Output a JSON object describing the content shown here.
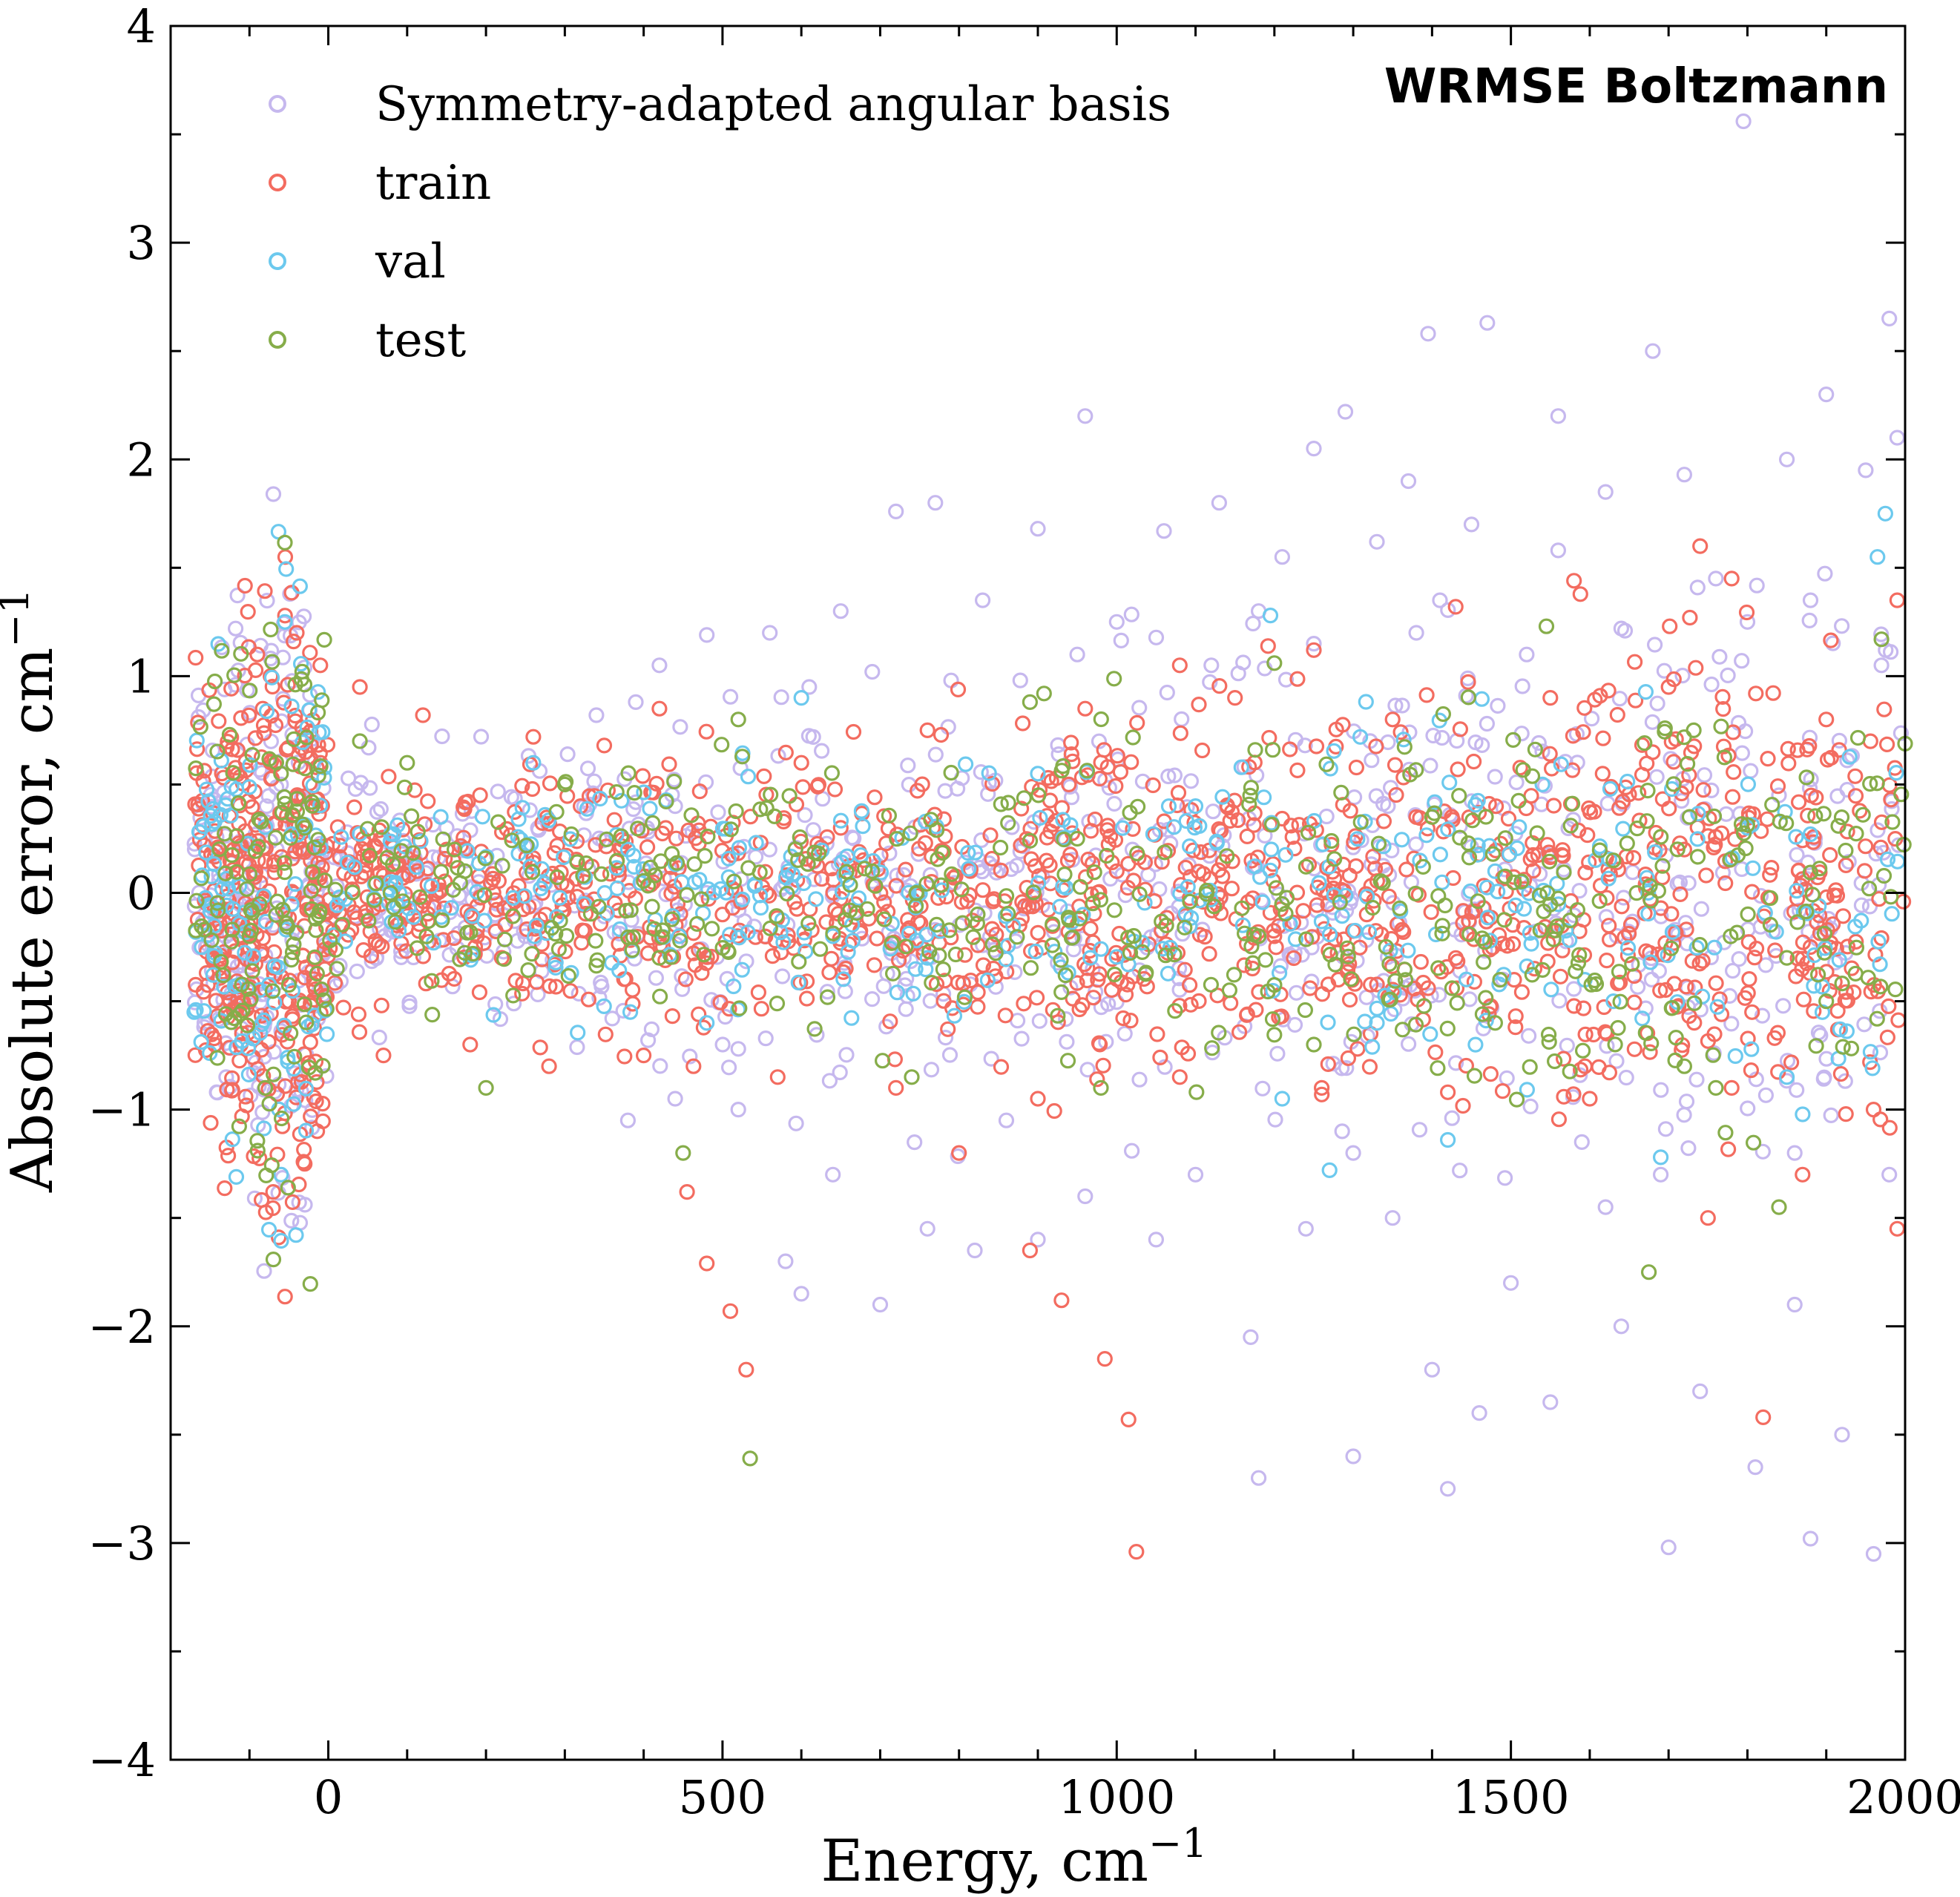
{
  "chart_data": {
    "type": "scatter",
    "title": "WRMSE Boltzmann",
    "xlabel": "Energy, cm",
    "xlabel_sup": "−1",
    "ylabel": "Absolute error, cm",
    "ylabel_sup": "−1",
    "xlim": [
      -200,
      2000
    ],
    "ylim": [
      -4,
      4
    ],
    "xticks": [
      0,
      500,
      1000,
      1500,
      2000
    ],
    "xtick_labels": [
      "0",
      "500",
      "1000",
      "1500",
      "2000"
    ],
    "yticks": [
      -4,
      -3,
      -2,
      -1,
      0,
      1,
      2,
      3,
      4
    ],
    "ytick_labels": [
      "−4",
      "−3",
      "−2",
      "−1",
      "0",
      "1",
      "2",
      "3",
      "4"
    ],
    "grid": false,
    "legend": "top-left",
    "marker": "open-circle",
    "series": [
      {
        "name": "Symmetry-adapted angular basis",
        "color": "#c6b8ee",
        "points": [
          [
            1795,
            3.56
          ],
          [
            1470,
            2.63
          ],
          [
            1395,
            2.58
          ],
          [
            1980,
            2.65
          ],
          [
            1680,
            2.5
          ],
          [
            1900,
            2.3
          ],
          [
            1560,
            2.2
          ],
          [
            1290,
            2.22
          ],
          [
            1250,
            2.05
          ],
          [
            960,
            2.2
          ],
          [
            1850,
            2.0
          ],
          [
            1370,
            1.9
          ],
          [
            1720,
            1.93
          ],
          [
            1130,
            1.8
          ],
          [
            1620,
            1.85
          ],
          [
            1450,
            1.7
          ],
          [
            720,
            1.76
          ],
          [
            770,
            1.8
          ],
          [
            900,
            1.68
          ],
          [
            1060,
            1.67
          ],
          [
            1210,
            1.55
          ],
          [
            1330,
            1.62
          ],
          [
            1560,
            1.58
          ],
          [
            1950,
            1.95
          ],
          [
            1990,
            2.1
          ],
          [
            650,
            1.3
          ],
          [
            560,
            1.2
          ],
          [
            480,
            1.19
          ],
          [
            420,
            1.05
          ],
          [
            830,
            1.35
          ],
          [
            1000,
            1.25
          ],
          [
            1180,
            1.3
          ],
          [
            1410,
            1.35
          ],
          [
            1760,
            1.45
          ],
          [
            1880,
            1.35
          ],
          [
            600,
            -1.85
          ],
          [
            700,
            -1.9
          ],
          [
            760,
            -1.55
          ],
          [
            820,
            -1.65
          ],
          [
            900,
            -1.6
          ],
          [
            1050,
            -1.6
          ],
          [
            1170,
            -2.05
          ],
          [
            1240,
            -1.55
          ],
          [
            1350,
            -1.5
          ],
          [
            1400,
            -2.2
          ],
          [
            1460,
            -2.4
          ],
          [
            1550,
            -2.35
          ],
          [
            1640,
            -2.0
          ],
          [
            1700,
            -3.02
          ],
          [
            1880,
            -2.98
          ],
          [
            1960,
            -3.05
          ],
          [
            1810,
            -2.65
          ],
          [
            1740,
            -2.3
          ],
          [
            1620,
            -1.45
          ],
          [
            1980,
            -1.3
          ],
          [
            520,
            -1.0
          ],
          [
            580,
            -1.7
          ],
          [
            640,
            -1.3
          ],
          [
            1180,
            -2.7
          ],
          [
            1300,
            -2.6
          ],
          [
            1500,
            -1.8
          ],
          [
            1420,
            -2.75
          ],
          [
            1920,
            -2.5
          ],
          [
            1860,
            -1.9
          ],
          [
            380,
            -1.05
          ],
          [
            440,
            -0.95
          ],
          [
            520,
            -0.72
          ],
          [
            860,
            -1.05
          ],
          [
            960,
            -1.4
          ],
          [
            1100,
            -1.3
          ],
          [
            1300,
            -1.2
          ],
          [
            1590,
            -1.15
          ],
          [
            1690,
            -1.3
          ],
          [
            1860,
            -1.2
          ],
          [
            340,
            0.82
          ],
          [
            390,
            0.88
          ],
          [
            610,
            0.95
          ],
          [
            690,
            1.02
          ],
          [
            790,
            0.98
          ],
          [
            950,
            1.1
          ],
          [
            1120,
            1.05
          ],
          [
            1250,
            1.15
          ],
          [
            1380,
            1.2
          ],
          [
            1520,
            1.1
          ],
          [
            1640,
            1.22
          ],
          [
            1800,
            1.25
          ],
          [
            1970,
            1.05
          ],
          [
            -100,
            -0.3
          ],
          [
            -60,
            0.5
          ],
          [
            -20,
            -0.6
          ],
          [
            150,
            0.3
          ],
          [
            250,
            -0.2
          ],
          [
            440,
            0.4
          ],
          [
            730,
            -0.3
          ],
          [
            1020,
            0.2
          ],
          [
            1490,
            -0.4
          ],
          [
            1840,
            0.45
          ]
        ]
      },
      {
        "name": "train",
        "color": "#f36c60",
        "points": [
          [
            1025,
            -3.04
          ],
          [
            1015,
            -2.43
          ],
          [
            985,
            -2.15
          ],
          [
            530,
            -2.2
          ],
          [
            510,
            -1.93
          ],
          [
            480,
            -1.71
          ],
          [
            455,
            -1.38
          ],
          [
            930,
            -1.88
          ],
          [
            890,
            -1.65
          ],
          [
            800,
            -1.2
          ],
          [
            1820,
            -2.42
          ],
          [
            1750,
            -1.5
          ],
          [
            1870,
            -1.3
          ],
          [
            1990,
            -1.55
          ],
          [
            1740,
            1.6
          ],
          [
            1780,
            1.45
          ],
          [
            1990,
            1.35
          ],
          [
            1580,
            1.44
          ],
          [
            1430,
            1.32
          ],
          [
            1250,
            1.12
          ],
          [
            1080,
            1.05
          ],
          [
            -90,
            1.1
          ],
          [
            -40,
            1.2
          ],
          [
            -70,
            -1.38
          ],
          [
            -30,
            -1.25
          ],
          [
            40,
            0.95
          ],
          [
            120,
            0.82
          ],
          [
            260,
            0.72
          ],
          [
            350,
            0.68
          ],
          [
            420,
            0.85
          ],
          [
            600,
            0.6
          ],
          [
            760,
            0.75
          ],
          [
            960,
            0.85
          ],
          [
            1150,
            0.9
          ],
          [
            1350,
            0.8
          ],
          [
            1550,
            0.9
          ],
          [
            1700,
            0.95
          ],
          [
            1900,
            0.8
          ],
          [
            70,
            -0.75
          ],
          [
            180,
            -0.7
          ],
          [
            280,
            -0.8
          ],
          [
            400,
            -0.75
          ],
          [
            570,
            -0.85
          ],
          [
            720,
            -0.9
          ],
          [
            900,
            -0.95
          ],
          [
            1080,
            -0.85
          ],
          [
            1260,
            -0.9
          ],
          [
            1420,
            -0.92
          ],
          [
            1600,
            -0.95
          ],
          [
            1780,
            -0.9
          ],
          [
            1960,
            -1.0
          ],
          [
            150,
            0.2
          ],
          [
            220,
            -0.3
          ],
          [
            320,
            0.4
          ],
          [
            500,
            -0.1
          ],
          [
            650,
            0.3
          ],
          [
            830,
            -0.4
          ],
          [
            1000,
            0.1
          ],
          [
            1200,
            -0.2
          ],
          [
            1380,
            0.35
          ],
          [
            1530,
            -0.35
          ],
          [
            1720,
            0.2
          ],
          [
            1880,
            -0.25
          ],
          [
            -120,
            0.2
          ],
          [
            -50,
            -0.5
          ],
          [
            -10,
            0.6
          ]
        ]
      },
      {
        "name": "val",
        "color": "#6cc9ee",
        "points": [
          [
            1975,
            1.75
          ],
          [
            1965,
            1.55
          ],
          [
            1195,
            1.28
          ],
          [
            1270,
            -1.28
          ],
          [
            1420,
            -1.14
          ],
          [
            1690,
            -1.22
          ],
          [
            1850,
            -0.85
          ],
          [
            -55,
            1.25
          ],
          [
            -60,
            -1.3
          ],
          [
            -170,
            -0.55
          ],
          [
            600,
            0.9
          ],
          [
            900,
            0.55
          ],
          [
            1210,
            -0.95
          ],
          [
            480,
            -0.6
          ],
          [
            260,
            0.6
          ],
          [
            760,
            -0.3
          ],
          [
            1100,
            0.4
          ],
          [
            1480,
            0.1
          ],
          [
            1630,
            -0.5
          ],
          [
            1800,
            0.3
          ],
          [
            380,
            0.2
          ],
          [
            640,
            -0.2
          ],
          [
            1330,
            -0.6
          ],
          [
            1540,
            0.5
          ]
        ]
      },
      {
        "name": "test",
        "color": "#86ad4a",
        "points": [
          [
            535,
            -2.61
          ],
          [
            1675,
            -1.75
          ],
          [
            1840,
            -1.45
          ],
          [
            1760,
            -0.9
          ],
          [
            450,
            -1.2
          ],
          [
            200,
            -0.9
          ],
          [
            1545,
            1.23
          ],
          [
            1970,
            1.17
          ],
          [
            1200,
            1.06
          ],
          [
            890,
            0.88
          ],
          [
            -60,
            0.55
          ],
          [
            -80,
            -0.9
          ],
          [
            -30,
            0.3
          ],
          [
            -100,
            -0.2
          ],
          [
            40,
            0.7
          ],
          [
            100,
            0.6
          ],
          [
            300,
            0.5
          ],
          [
            520,
            0.8
          ],
          [
            740,
            -0.85
          ],
          [
            980,
            -0.9
          ],
          [
            1250,
            -0.7
          ],
          [
            1480,
            -0.6
          ],
          [
            1720,
            -0.8
          ],
          [
            1900,
            -0.5
          ],
          [
            160,
            0.2
          ],
          [
            420,
            -0.3
          ],
          [
            690,
            0.1
          ],
          [
            950,
            0.25
          ],
          [
            1180,
            -0.2
          ],
          [
            1400,
            0.35
          ],
          [
            1630,
            0.15
          ],
          [
            1850,
            -0.3
          ]
        ]
      }
    ]
  }
}
